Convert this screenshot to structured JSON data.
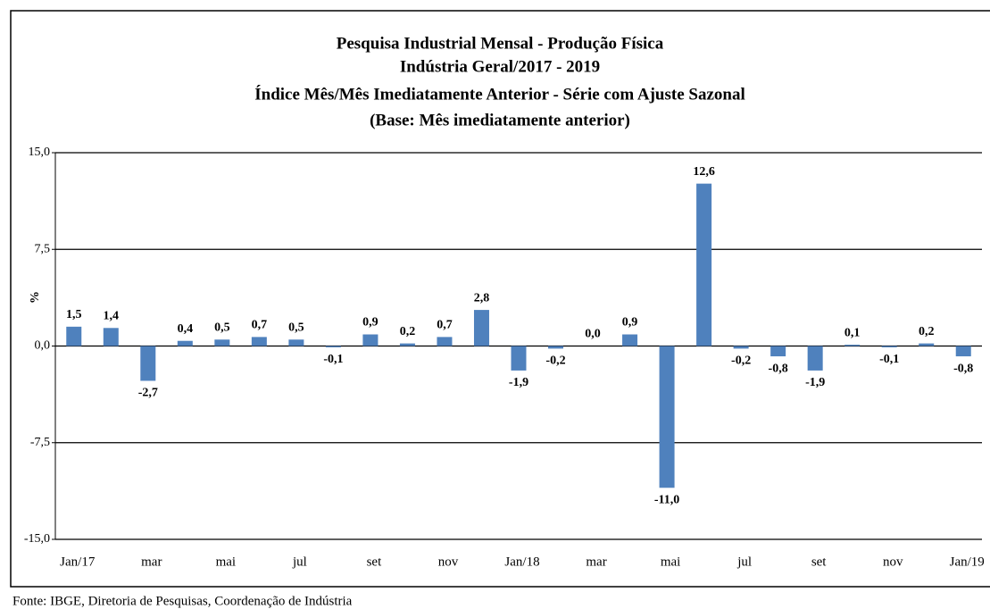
{
  "chart_data": {
    "type": "bar",
    "title": [
      "Pesquisa Industrial Mensal - Produção Física",
      "Indústria Geral/2017 - 2019",
      "Índice Mês/Mês Imediatamente Anterior - Série com Ajuste Sazonal",
      "(Base: Mês imediatamente anterior)"
    ],
    "y_label": "%",
    "source": "Fonte: IBGE, Diretoria de Pesquisas, Coordenação de Indústria",
    "categories": [
      "Jan/17",
      null,
      "mar",
      null,
      "mai",
      null,
      "jul",
      null,
      "set",
      null,
      "nov",
      null,
      "Jan/18",
      null,
      "mar",
      null,
      "mai",
      null,
      "jul",
      null,
      "set",
      null,
      "nov",
      null,
      "Jan/19"
    ],
    "values": [
      1.5,
      1.4,
      -2.7,
      0.4,
      0.5,
      0.7,
      0.5,
      -0.1,
      0.9,
      0.2,
      0.7,
      2.8,
      -1.9,
      -0.2,
      0.0,
      0.9,
      -11.0,
      12.6,
      -0.2,
      -0.8,
      -1.9,
      0.1,
      -0.1,
      0.2,
      -0.8
    ],
    "value_labels": [
      "1,5",
      "1,4",
      "-2,7",
      "0,4",
      "0,5",
      "0,7",
      "0,5",
      "-0,1",
      "0,9",
      "0,2",
      "0,7",
      "2,8",
      "-1,9",
      "-0,2",
      "0,0",
      "0,9",
      "-11,0",
      "12,6",
      "-0,2",
      "-0,8",
      "-1,9",
      "0,1",
      "-0,1",
      "0,2",
      "-0,8"
    ],
    "color": "#4f81bd",
    "ylim": [
      -15,
      15
    ],
    "yticks": [
      {
        "value": -15,
        "label": "-15,0"
      },
      {
        "value": -7.5,
        "label": "-7,5"
      },
      {
        "value": 0,
        "label": "0,0"
      },
      {
        "value": 7.5,
        "label": "7,5"
      },
      {
        "value": 15,
        "label": "15,0"
      }
    ],
    "grid": true
  }
}
